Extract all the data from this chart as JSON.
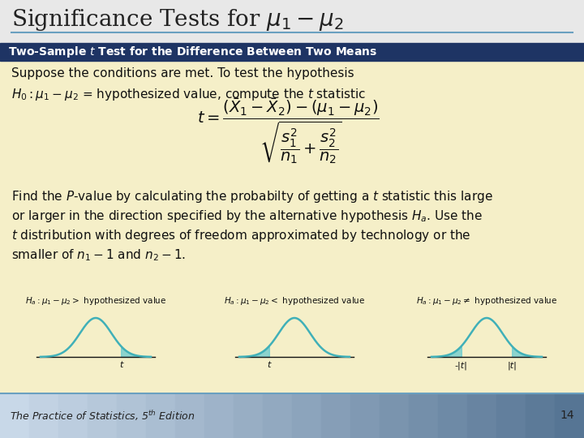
{
  "title": "Significance Tests for $\\mu_1 - \\mu_2$",
  "header_text": "Two-Sample $t$ Test for the Difference Between Two Means",
  "bg_color": "#f5efc8",
  "header_bg": "#1e3464",
  "header_fg": "#ffffff",
  "title_bg": "#e8e8e8",
  "title_fg": "#222222",
  "body_fg": "#111111",
  "footer_bg_left": "#c8d8e8",
  "footer_bg_right": "#7090b0",
  "page_number": "14",
  "border_color": "#6aa0c0",
  "curve_color": "#40b0b8",
  "curve_fill": "#60c8d0",
  "shade_alpha": 0.7,
  "underline_color": "#6aa0c0",
  "title_fontsize": 20,
  "header_fontsize": 10,
  "body_fontsize": 11,
  "footer_fontsize": 9,
  "curve_lw": 1.8
}
